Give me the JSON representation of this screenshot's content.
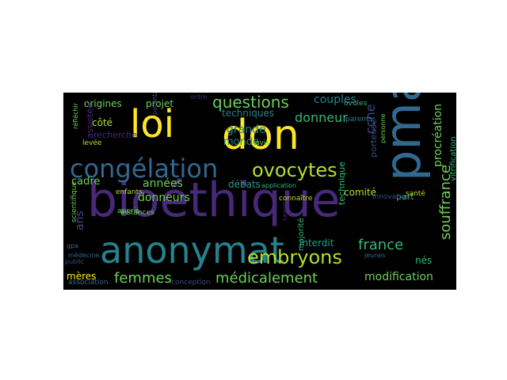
{
  "word_cloud": {
    "background": "#000000",
    "palette": [
      "#fde725",
      "#b5de2b",
      "#6ece58",
      "#35b779",
      "#1f9e89",
      "#26828e",
      "#31688e",
      "#3e4989",
      "#482878",
      "#440154"
    ],
    "words": [
      {
        "text": "bioéthique",
        "color": "#482878"
      },
      {
        "text": "don",
        "color": "#fde725"
      },
      {
        "text": "loi",
        "color": "#fde725"
      },
      {
        "text": "pma",
        "color": "#31688e"
      },
      {
        "text": "anonymat",
        "color": "#26828e"
      },
      {
        "text": "congélation",
        "color": "#31688e"
      },
      {
        "text": "ovocytes",
        "color": "#b5de2b"
      },
      {
        "text": "embryons",
        "color": "#b5de2b"
      },
      {
        "text": "questions",
        "color": "#6ece58"
      },
      {
        "text": "femmes",
        "color": "#6ece58"
      },
      {
        "text": "médicalement",
        "color": "#6ece58"
      },
      {
        "text": "souffrance",
        "color": "#6ece58"
      },
      {
        "text": "france",
        "color": "#35b779"
      },
      {
        "text": "donneur",
        "color": "#35b779"
      },
      {
        "text": "années",
        "color": "#6ece58"
      },
      {
        "text": "donneurs",
        "color": "#6ece58"
      },
      {
        "text": "modification",
        "color": "#6ece58"
      },
      {
        "text": "procréation",
        "color": "#6ece58"
      },
      {
        "text": "ccne",
        "color": "#3e4989"
      },
      {
        "text": "couples",
        "color": "#26828e"
      },
      {
        "text": "techniques",
        "color": "#26828e"
      },
      {
        "text": "grande",
        "color": "#26828e"
      },
      {
        "text": "monde",
        "color": "#26828e"
      },
      {
        "text": "origines",
        "color": "#6ece58"
      },
      {
        "text": "projet",
        "color": "#6ece58"
      },
      {
        "text": "mères",
        "color": "#fde725"
      },
      {
        "text": "comité",
        "color": "#b5de2b"
      },
      {
        "text": "interdit",
        "color": "#1f9e89"
      },
      {
        "text": "nés",
        "color": "#35b779"
      },
      {
        "text": "ans",
        "color": "#3e4989"
      },
      {
        "text": "cadre",
        "color": "#6ece58"
      },
      {
        "text": "côté",
        "color": "#b5de2b"
      },
      {
        "text": "assistée",
        "color": "#482878"
      },
      {
        "text": "recherche",
        "color": "#482878"
      },
      {
        "text": "débats",
        "color": "#1f9e89"
      },
      {
        "text": "porteuse",
        "color": "#3e4989"
      },
      {
        "text": "technique",
        "color": "#35b779"
      },
      {
        "text": "vitrification",
        "color": "#35b779"
      },
      {
        "text": "part",
        "color": "#35b779"
      },
      {
        "text": "enfants",
        "color": "#b5de2b"
      },
      {
        "text": "scientifique",
        "color": "#6ece58"
      },
      {
        "text": "instances",
        "color": "#6ece58"
      },
      {
        "text": "majorité",
        "color": "#35b779"
      },
      {
        "text": "association",
        "color": "#31688e"
      },
      {
        "text": "conception",
        "color": "#3e4989"
      },
      {
        "text": "public",
        "color": "#3e4989"
      },
      {
        "text": "médecine",
        "color": "#31688e"
      },
      {
        "text": "gpa",
        "color": "#31688e"
      },
      {
        "text": "application",
        "color": "#35b779"
      },
      {
        "text": "connaître",
        "color": "#b5de2b"
      },
      {
        "text": "avis",
        "color": "#6ece58"
      },
      {
        "text": "santé",
        "color": "#b5de2b"
      },
      {
        "text": "innovation",
        "color": "#3e4989"
      },
      {
        "text": "levée",
        "color": "#b5de2b"
      },
      {
        "text": "appris",
        "color": "#6ece58"
      },
      {
        "text": "réfléchir",
        "color": "#6ece58"
      },
      {
        "text": "ovules",
        "color": "#35b779"
      },
      {
        "text": "ordre",
        "color": "#482878"
      },
      {
        "text": "parentalité",
        "color": "#3e4989"
      },
      {
        "text": "personne",
        "color": "#6ece58"
      },
      {
        "text": "savoir",
        "color": "#482878"
      },
      {
        "text": "parents",
        "color": "#26828e"
      },
      {
        "text": "jeunes",
        "color": "#31688e"
      }
    ]
  }
}
